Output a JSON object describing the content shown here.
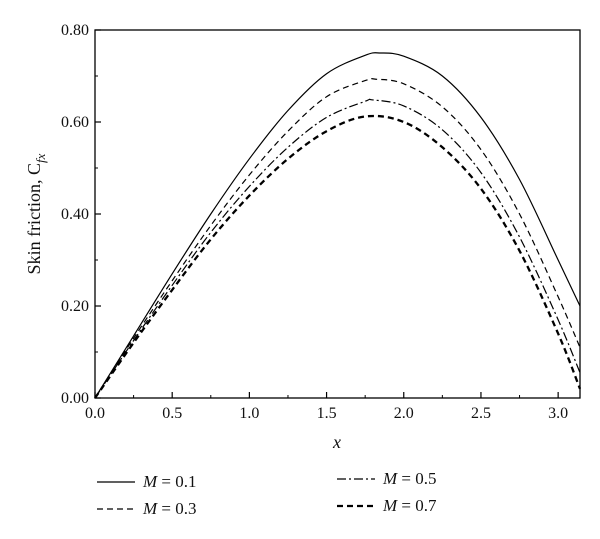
{
  "chart_data": {
    "type": "line",
    "xlabel": "x",
    "ylabel": "Skin friction, C",
    "ylabel_sub": "fx",
    "xlim": [
      0,
      3.1416
    ],
    "ylim": [
      0,
      0.8
    ],
    "xticks": [
      0,
      0.5,
      1.0,
      1.5,
      2.0,
      2.5,
      3.0
    ],
    "xtick_labels": [
      "0.0",
      "0.5",
      "1.0",
      "1.5",
      "2.0",
      "2.5",
      "3.0"
    ],
    "yticks": [
      0,
      0.2,
      0.4,
      0.6,
      0.8
    ],
    "ytick_labels": [
      "0.00",
      "0.20",
      "0.40",
      "0.60",
      "0.80"
    ],
    "grid": false,
    "legend_placement": "bottom",
    "series": [
      {
        "name": "M = 0.1",
        "style": "solid",
        "x": [
          0,
          0.25,
          0.5,
          0.75,
          1.0,
          1.25,
          1.5,
          1.75,
          1.85,
          2.0,
          2.25,
          2.5,
          2.75,
          3.0,
          3.1416
        ],
        "y": [
          0,
          0.135,
          0.27,
          0.4,
          0.52,
          0.625,
          0.705,
          0.745,
          0.75,
          0.743,
          0.7,
          0.61,
          0.475,
          0.3,
          0.2
        ]
      },
      {
        "name": "M = 0.3",
        "style": "dashed",
        "x": [
          0,
          0.25,
          0.5,
          0.75,
          1.0,
          1.25,
          1.5,
          1.75,
          1.82,
          2.0,
          2.25,
          2.5,
          2.75,
          3.0,
          3.1416
        ],
        "y": [
          0,
          0.13,
          0.255,
          0.375,
          0.485,
          0.58,
          0.655,
          0.69,
          0.693,
          0.683,
          0.633,
          0.54,
          0.4,
          0.22,
          0.11
        ]
      },
      {
        "name": "M = 0.5",
        "style": "dashdot",
        "x": [
          0,
          0.25,
          0.5,
          0.75,
          1.0,
          1.25,
          1.5,
          1.75,
          1.8,
          2.0,
          2.25,
          2.5,
          2.75,
          3.0,
          3.1416
        ],
        "y": [
          0,
          0.125,
          0.245,
          0.36,
          0.46,
          0.545,
          0.61,
          0.645,
          0.648,
          0.635,
          0.583,
          0.49,
          0.35,
          0.17,
          0.055
        ]
      },
      {
        "name": "M = 0.7",
        "style": "bold-dashed",
        "x": [
          0,
          0.25,
          0.5,
          0.75,
          1.0,
          1.25,
          1.5,
          1.75,
          2.0,
          2.25,
          2.5,
          2.75,
          3.0,
          3.1416
        ],
        "y": [
          0,
          0.12,
          0.235,
          0.345,
          0.44,
          0.52,
          0.58,
          0.612,
          0.6,
          0.545,
          0.455,
          0.32,
          0.14,
          0.02
        ]
      }
    ],
    "legend": [
      {
        "label_var": "M",
        "label_value": " = 0.1"
      },
      {
        "label_var": "M",
        "label_value": " = 0.3"
      },
      {
        "label_var": "M",
        "label_value": " = 0.5"
      },
      {
        "label_var": "M",
        "label_value": " = 0.7"
      }
    ]
  }
}
